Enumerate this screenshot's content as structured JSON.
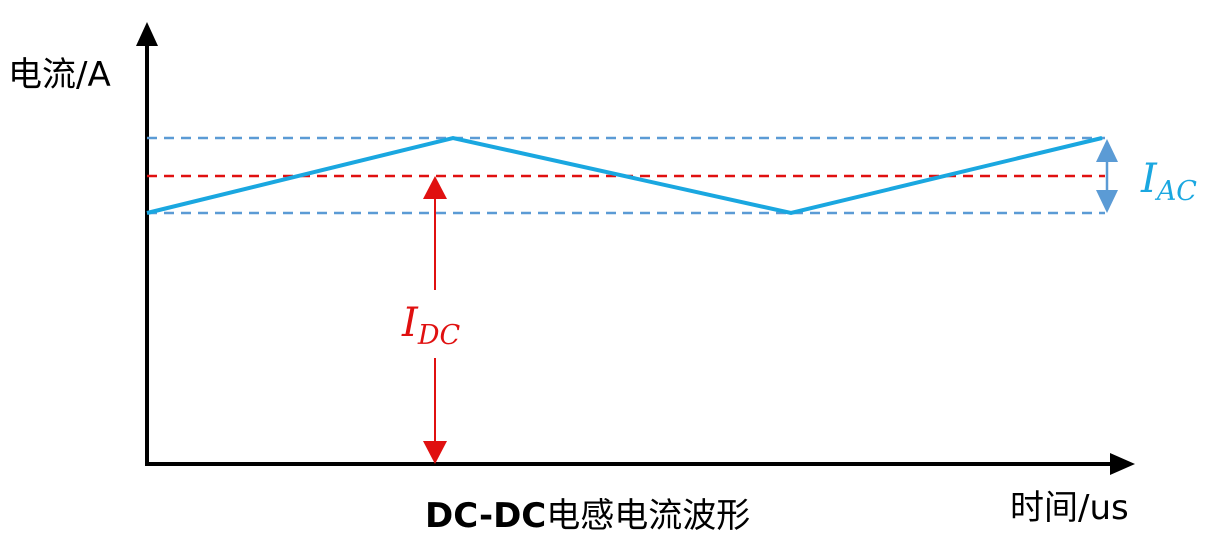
{
  "y_axis": {
    "label": "电流/A"
  },
  "x_axis": {
    "label": "时间/us"
  },
  "caption": {
    "prefix": "DC-DC",
    "suffix": "电感电流波形"
  },
  "labels": {
    "idc": {
      "main": "I",
      "sub": "DC"
    },
    "iac": {
      "main": "I",
      "sub": "AC"
    }
  },
  "waveform": {
    "type": "triangle",
    "points_time": [
      0,
      1,
      2,
      3
    ],
    "points_level": [
      "min",
      "max",
      "min",
      "max"
    ]
  },
  "colors": {
    "axis": "#000000",
    "waveform": "#1AA7E0",
    "band_lines": "#5B9BD5",
    "dc_line": "#E01010",
    "iac_arrow": "#5B9BD5",
    "idc_arrow": "#E01010",
    "iac_text": "#1AA7E0",
    "idc_text": "#E01010"
  }
}
